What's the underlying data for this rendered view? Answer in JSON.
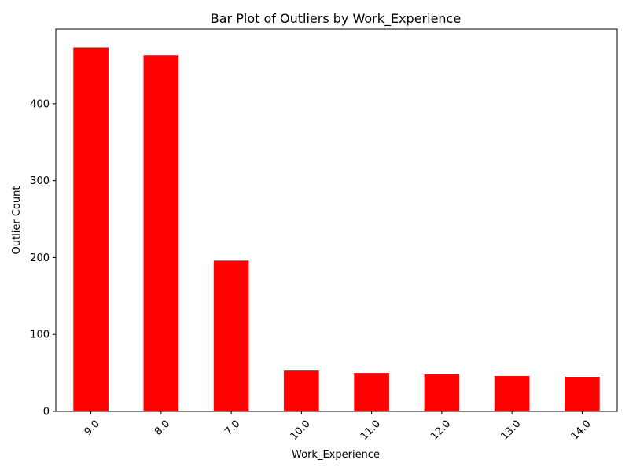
{
  "chart_data": {
    "type": "bar",
    "title": "Bar Plot of Outliers by Work_Experience",
    "xlabel": "Work_Experience",
    "ylabel": "Outlier Count",
    "categories": [
      "9.0",
      "8.0",
      "7.0",
      "10.0",
      "11.0",
      "12.0",
      "13.0",
      "14.0"
    ],
    "values": [
      473,
      463,
      196,
      53,
      50,
      48,
      46,
      45
    ],
    "ylim": [
      0,
      497
    ],
    "yticks": [
      0,
      100,
      200,
      300,
      400
    ],
    "bar_color": "#ff0000",
    "grid": false,
    "legend": "none"
  }
}
